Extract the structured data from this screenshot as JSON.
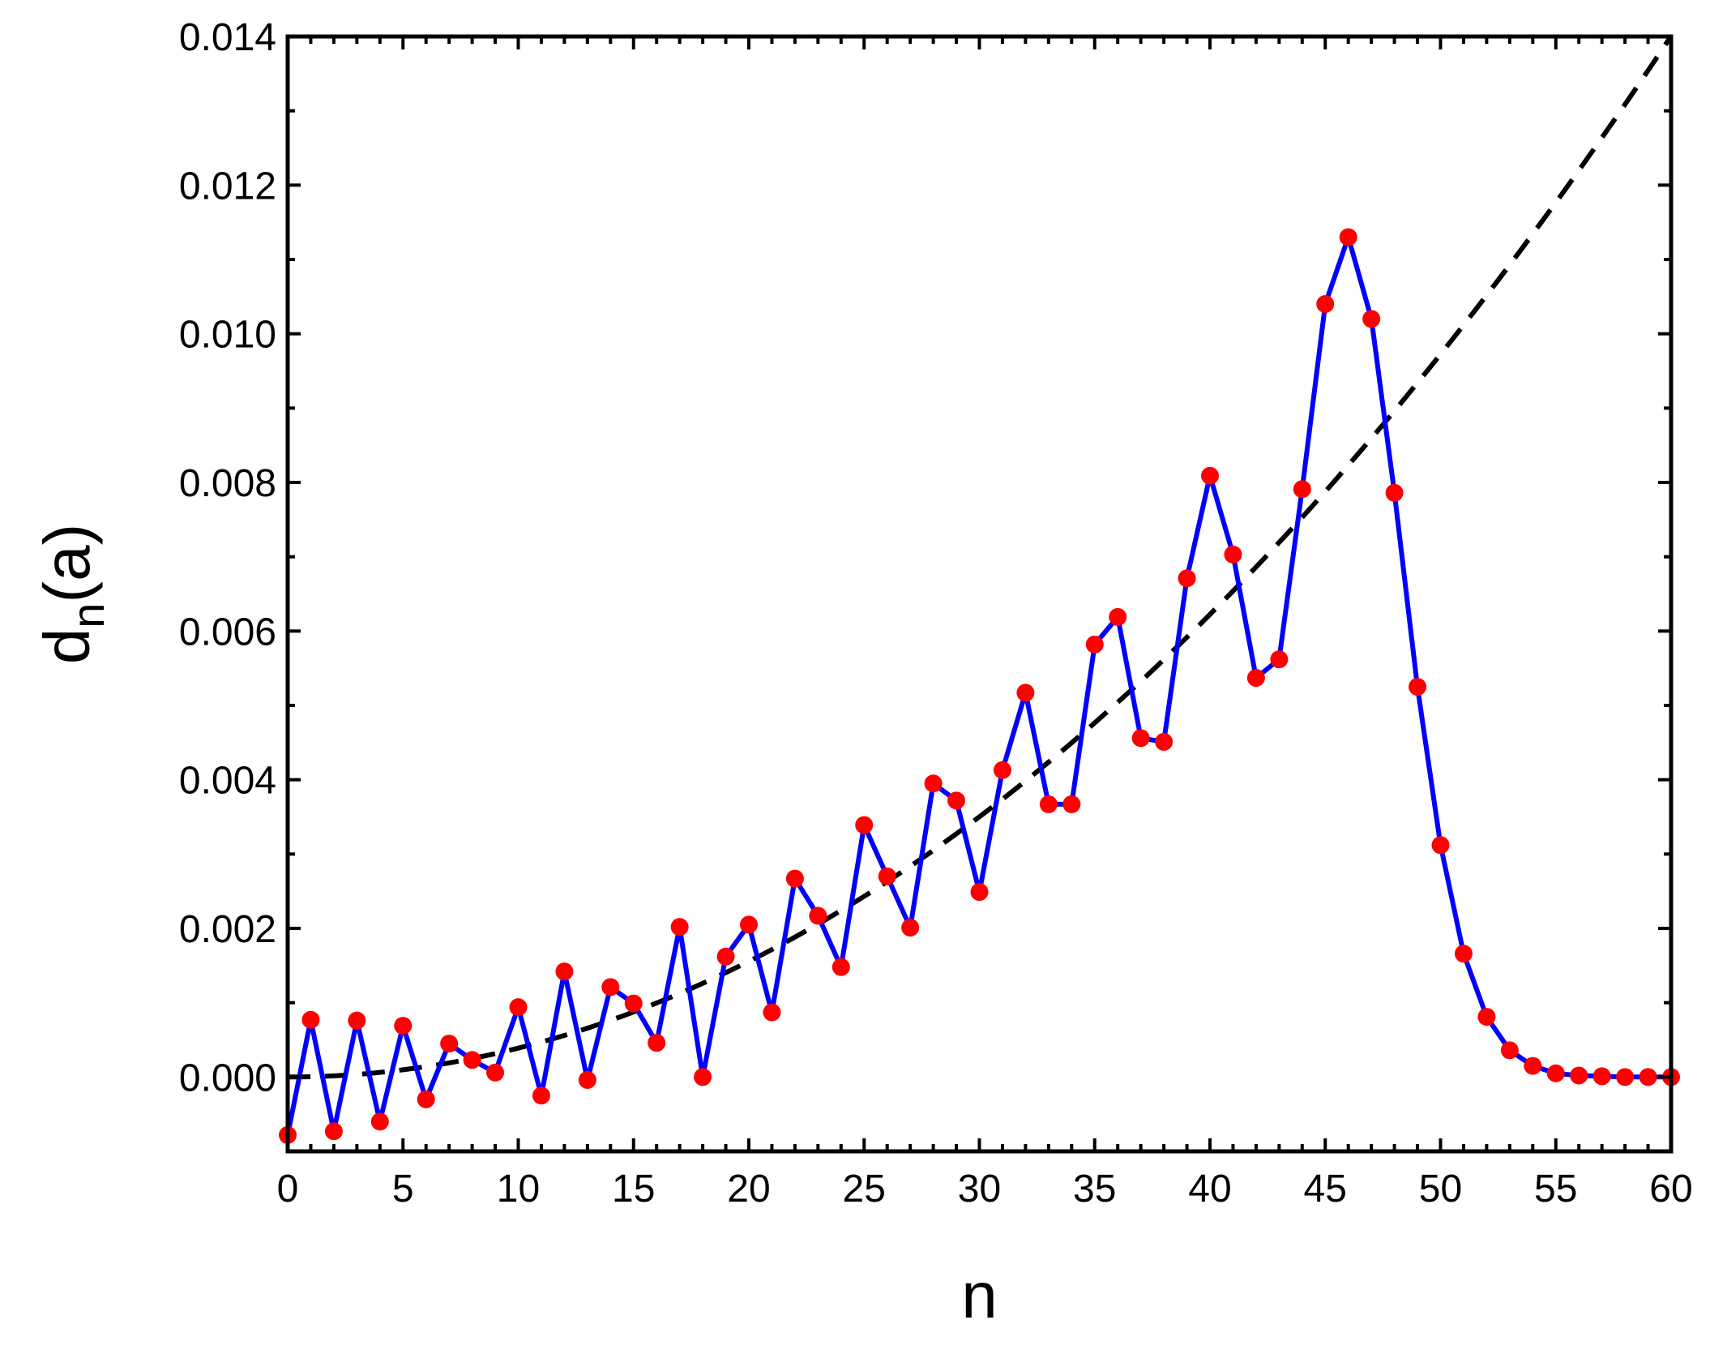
{
  "chart_data": {
    "type": "line",
    "xlabel": "n",
    "ylabel": {
      "main": "d",
      "subscript": "n",
      "suffix": "(a)"
    },
    "xlim": [
      0,
      60
    ],
    "ylim": [
      -0.001,
      0.014
    ],
    "x_ticks": [
      0,
      5,
      10,
      15,
      20,
      25,
      30,
      35,
      40,
      45,
      50,
      55,
      60
    ],
    "x_tick_labels": [
      "0",
      "5",
      "10",
      "15",
      "20",
      "25",
      "30",
      "35",
      "40",
      "45",
      "50",
      "55",
      "60"
    ],
    "y_ticks": [
      0,
      0.002,
      0.004,
      0.006,
      0.008,
      0.01,
      0.012,
      0.014
    ],
    "y_tick_labels": [
      "0.000",
      "0.002",
      "0.004",
      "0.006",
      "0.008",
      "0.010",
      "0.012",
      "0.014"
    ],
    "grid": false,
    "legend": "none",
    "series": [
      {
        "style": "solid-line-with-markers",
        "line_color": "#0000ff",
        "marker_color": "#ff0000",
        "x": [
          0,
          1,
          2,
          3,
          4,
          5,
          6,
          7,
          8,
          9,
          10,
          11,
          12,
          13,
          14,
          15,
          16,
          17,
          18,
          19,
          20,
          21,
          22,
          23,
          24,
          25,
          26,
          27,
          28,
          29,
          30,
          31,
          32,
          33,
          34,
          35,
          36,
          37,
          38,
          39,
          40,
          41,
          42,
          43,
          44,
          45,
          46,
          47,
          48,
          49,
          50,
          51,
          52,
          53,
          54,
          55,
          56,
          57,
          58,
          59,
          60
        ],
        "y": [
          -0.00078,
          0.00077,
          -0.00073,
          0.00076,
          -0.0006,
          0.00069,
          -0.0003,
          0.00045,
          0.00023,
          6e-05,
          0.00094,
          -0.00025,
          0.00142,
          -4e-05,
          0.00121,
          0.00099,
          0.00046,
          0.00202,
          0.0,
          0.00162,
          0.00205,
          0.00087,
          0.00267,
          0.00217,
          0.00148,
          0.00339,
          0.0027,
          0.00201,
          0.00395,
          0.00372,
          0.00249,
          0.00413,
          0.00517,
          0.00367,
          0.00367,
          0.00582,
          0.00619,
          0.00456,
          0.00451,
          0.00671,
          0.00809,
          0.00703,
          0.00537,
          0.00562,
          0.00791,
          0.0104,
          0.0113,
          0.0102,
          0.00786,
          0.00525,
          0.00312,
          0.00166,
          0.00081,
          0.00036,
          0.00015,
          5e-05,
          2e-05,
          1e-05,
          0.0,
          0.0,
          0.0
        ]
      },
      {
        "style": "dashed-line",
        "line_color": "#000000",
        "x": [
          0,
          60
        ],
        "fit": "quadratic",
        "coefficient": 3.89e-06
      }
    ]
  }
}
